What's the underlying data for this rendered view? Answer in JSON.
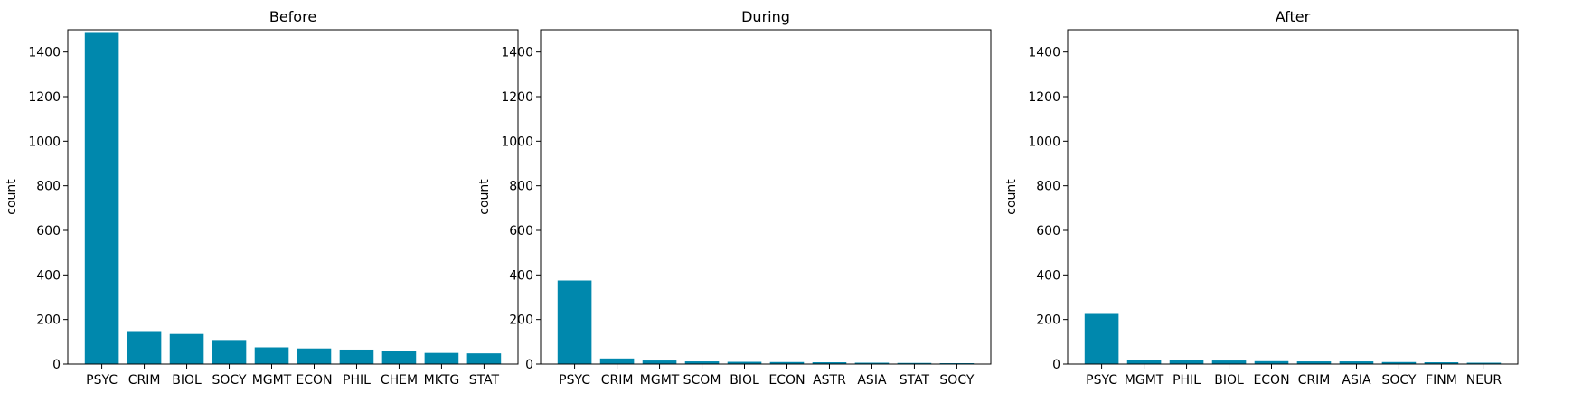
{
  "bar_color": "#0088ad",
  "chart_data": [
    {
      "type": "bar",
      "title": "Before",
      "ylabel": "count",
      "xlabel": "",
      "ylim": [
        0,
        1500
      ],
      "yticks": [
        0,
        200,
        400,
        600,
        800,
        1000,
        1200,
        1400
      ],
      "categories": [
        "PSYC",
        "CRIM",
        "BIOL",
        "SOCY",
        "MGMT",
        "ECON",
        "PHIL",
        "CHEM",
        "MKTG",
        "STAT"
      ],
      "values": [
        1490,
        148,
        135,
        108,
        75,
        70,
        65,
        57,
        50,
        48
      ]
    },
    {
      "type": "bar",
      "title": "During",
      "ylabel": "count",
      "xlabel": "",
      "ylim": [
        0,
        1500
      ],
      "yticks": [
        0,
        200,
        400,
        600,
        800,
        1000,
        1200,
        1400
      ],
      "categories": [
        "PSYC",
        "CRIM",
        "MGMT",
        "SCOM",
        "BIOL",
        "ECON",
        "ASTR",
        "ASIA",
        "STAT",
        "SOCY"
      ],
      "values": [
        375,
        25,
        16,
        12,
        10,
        9,
        8,
        6,
        5,
        4
      ]
    },
    {
      "type": "bar",
      "title": "After",
      "ylabel": "count",
      "xlabel": "",
      "ylim": [
        0,
        1500
      ],
      "yticks": [
        0,
        200,
        400,
        600,
        800,
        1000,
        1200,
        1400
      ],
      "categories": [
        "PSYC",
        "MGMT",
        "PHIL",
        "BIOL",
        "ECON",
        "CRIM",
        "ASIA",
        "SOCY",
        "FINM",
        "NEUR"
      ],
      "values": [
        225,
        18,
        17,
        16,
        13,
        12,
        12,
        9,
        8,
        6
      ]
    }
  ]
}
